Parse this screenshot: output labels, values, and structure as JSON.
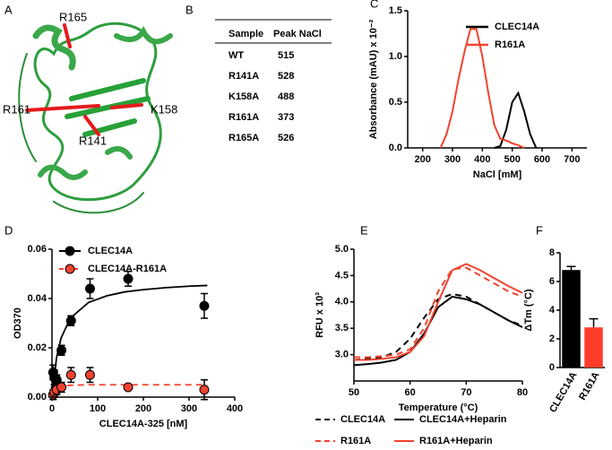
{
  "figure": {
    "panel": "A",
    "structure_labels": [
      "R165",
      "R161",
      "K158",
      "R141"
    ]
  },
  "table": {
    "panel": "B",
    "header": [
      "Sample",
      "Peak NaCl"
    ],
    "rows": [
      [
        "WT",
        "515"
      ],
      [
        "R141A",
        "528"
      ],
      [
        "K158A",
        "488"
      ],
      [
        "R161A",
        "373"
      ],
      [
        "R165A",
        "526"
      ]
    ]
  },
  "chart_data": [
    {
      "type": "line",
      "panel": "C",
      "x_label": "NaCl [mM]",
      "y_label": "Absorbance (mAU) x 10⁻²",
      "x": [
        260,
        280,
        300,
        320,
        340,
        360,
        380,
        400,
        420,
        440,
        460,
        480,
        500,
        520,
        540,
        560,
        580,
        600
      ],
      "series": [
        {
          "name": "CLEC14A",
          "color": "#000000",
          "values": [
            null,
            null,
            null,
            null,
            null,
            null,
            null,
            null,
            null,
            0,
            0.02,
            0.2,
            0.5,
            0.6,
            0.4,
            0.15,
            0,
            null
          ]
        },
        {
          "name": "R161A",
          "color": "#f0432f",
          "values": [
            0,
            0.15,
            0.4,
            0.75,
            1.05,
            1.3,
            1.3,
            1.0,
            0.6,
            0.25,
            0.1,
            0.08,
            0.05,
            0.03,
            0,
            null,
            null,
            null
          ]
        }
      ],
      "xlim": [
        150,
        750
      ],
      "xticks": [
        200,
        300,
        400,
        500,
        600,
        700
      ],
      "ylim": [
        0,
        1.5
      ],
      "yticks": [
        {
          "value": 0,
          "label": "0.0"
        },
        {
          "value": 0.5,
          "label": "0.5"
        },
        {
          "value": 1,
          "label": "1.0"
        },
        {
          "value": 1.5,
          "label": "1.5"
        }
      ],
      "legend": "top-right"
    },
    {
      "type": "scatter",
      "panel": "D",
      "x_label": "CLEC14A-325 [nM]",
      "y_label": "OD370",
      "x": [
        2.6,
        5.2,
        10.4,
        20.8,
        41.7,
        83.3,
        166.7,
        333.3
      ],
      "fit_x": [
        0,
        10,
        20,
        40,
        80,
        120,
        160,
        200,
        250,
        300,
        340
      ],
      "series": [
        {
          "name": "CLEC14A",
          "color": "#000000",
          "dash": false,
          "values": [
            0.01,
            0.008,
            0.007,
            0.019,
            0.031,
            0.044,
            0.048,
            0.037
          ],
          "errors": [
            0.003,
            0.003,
            0.002,
            0.002,
            0.002,
            0.004,
            0.003,
            0.005
          ],
          "fit": [
            0,
            0.016,
            0.024,
            0.032,
            0.0384,
            0.0411,
            0.0427,
            0.0436,
            0.0444,
            0.045,
            0.0453
          ]
        },
        {
          "name": "CLEC14A-R161A",
          "color": "#f0432f",
          "dash": true,
          "values": [
            0.001,
            0.002,
            0.003,
            0.004,
            0.009,
            0.009,
            0.004,
            0.003
          ],
          "errors": [
            0.002,
            0.002,
            0.002,
            0.002,
            0.003,
            0.003,
            0.001,
            0.004
          ],
          "fit": [
            0,
            0.004,
            0.0045,
            0.0048,
            0.005,
            0.005,
            0.005,
            0.005,
            0.005,
            0.005,
            0.005
          ]
        }
      ],
      "xlim": [
        0,
        400
      ],
      "xticks": [
        0,
        100,
        200,
        300,
        400
      ],
      "ylim": [
        0,
        0.06
      ],
      "yticks": [
        {
          "value": 0,
          "label": "0.00"
        },
        {
          "value": 0.02,
          "label": "0.02"
        },
        {
          "value": 0.04,
          "label": "0.04"
        },
        {
          "value": 0.06,
          "label": "0.06"
        }
      ],
      "legend": "top-left"
    },
    {
      "type": "line",
      "panel": "E",
      "x_label": "Temperature (°C)",
      "y_label": "RFU x 10³",
      "x": [
        50,
        52.5,
        55,
        57.5,
        60,
        62.5,
        65,
        67.5,
        70,
        72.5,
        75,
        77.5,
        80
      ],
      "series": [
        {
          "name": "CLEC14A",
          "color": "#000000",
          "dash": true,
          "values": [
            2.9,
            2.92,
            2.95,
            3.05,
            3.3,
            3.7,
            4.05,
            4.15,
            4.1,
            3.95,
            3.8,
            3.65,
            3.55
          ]
        },
        {
          "name": "CLEC14A+Heparin",
          "color": "#000000",
          "dash": false,
          "values": [
            2.8,
            2.82,
            2.85,
            2.9,
            3.05,
            3.4,
            3.9,
            4.1,
            4.05,
            3.95,
            3.8,
            3.65,
            3.52
          ]
        },
        {
          "name": "R161A",
          "color": "#f0432f",
          "dash": true,
          "values": [
            2.95,
            2.95,
            2.97,
            3.0,
            3.1,
            3.5,
            4.2,
            4.62,
            4.65,
            4.5,
            4.35,
            4.2,
            4.1
          ]
        },
        {
          "name": "R161A+Heparin",
          "color": "#f0432f",
          "dash": false,
          "values": [
            2.9,
            2.9,
            2.92,
            2.95,
            3.05,
            3.35,
            4.0,
            4.6,
            4.72,
            4.6,
            4.45,
            4.3,
            4.17
          ]
        }
      ],
      "xlim": [
        50,
        80
      ],
      "xticks": [
        50,
        60,
        70,
        80
      ],
      "ylim": [
        2.5,
        5
      ],
      "yticks": [
        {
          "value": 3,
          "label": "3.0"
        },
        {
          "value": 3.5,
          "label": "3.5"
        },
        {
          "value": 4,
          "label": "4.0"
        },
        {
          "value": 4.5,
          "label": "4.5"
        },
        {
          "value": 5,
          "label": "5.0"
        }
      ],
      "legend": "bottom"
    },
    {
      "type": "bar",
      "panel": "F",
      "y_label": "ΔTm (°C)",
      "categories": [
        "CLEC14A",
        "R161A"
      ],
      "values": [
        6.8,
        2.8
      ],
      "errors": [
        0.25,
        0.6
      ],
      "colors": [
        "#000000",
        "#ff3b2a"
      ],
      "ylim": [
        0,
        8
      ],
      "yticks": [
        0,
        2,
        4,
        6,
        8
      ]
    }
  ]
}
